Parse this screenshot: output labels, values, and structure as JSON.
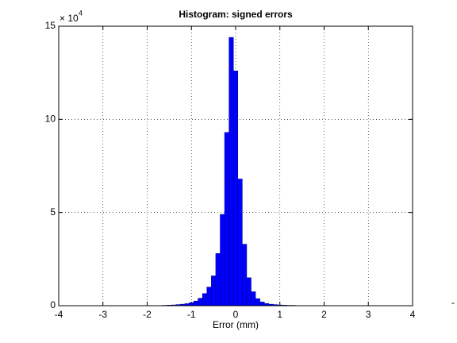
{
  "chart_data": {
    "type": "histogram",
    "title": "Histogram: signed errors",
    "xlabel": "Error (mm)",
    "y_multiplier": {
      "base": "× 10",
      "power": "4"
    },
    "bins": [
      -1.65,
      -1.55,
      -1.45,
      -1.35,
      -1.25,
      -1.15,
      -1.05,
      -0.95,
      -0.85,
      -0.75,
      -0.65,
      -0.55,
      -0.45,
      -0.35,
      -0.25,
      -0.15,
      -0.05,
      0.05,
      0.15,
      0.25,
      0.35,
      0.45,
      0.55,
      0.65,
      0.75,
      0.85,
      0.95,
      1.05,
      1.15,
      1.25,
      1.35,
      1.45,
      1.55
    ],
    "values": [
      0.02,
      0.03,
      0.04,
      0.06,
      0.08,
      0.11,
      0.16,
      0.25,
      0.4,
      0.65,
      1.0,
      1.6,
      2.8,
      4.9,
      9.3,
      14.4,
      12.6,
      6.8,
      3.3,
      1.5,
      0.75,
      0.38,
      0.2,
      0.12,
      0.08,
      0.06,
      0.04,
      0.03,
      0.02,
      0.02,
      0.01,
      0.01
    ],
    "color": "#0000ff",
    "xlim": [
      -4,
      4
    ],
    "xticks": [
      -4,
      -3,
      -2,
      -1,
      0,
      1,
      2,
      3,
      4
    ],
    "ylim": [
      0,
      15
    ],
    "yticks": [
      0,
      5,
      10,
      15
    ],
    "grid": true,
    "stray_label": "-"
  }
}
